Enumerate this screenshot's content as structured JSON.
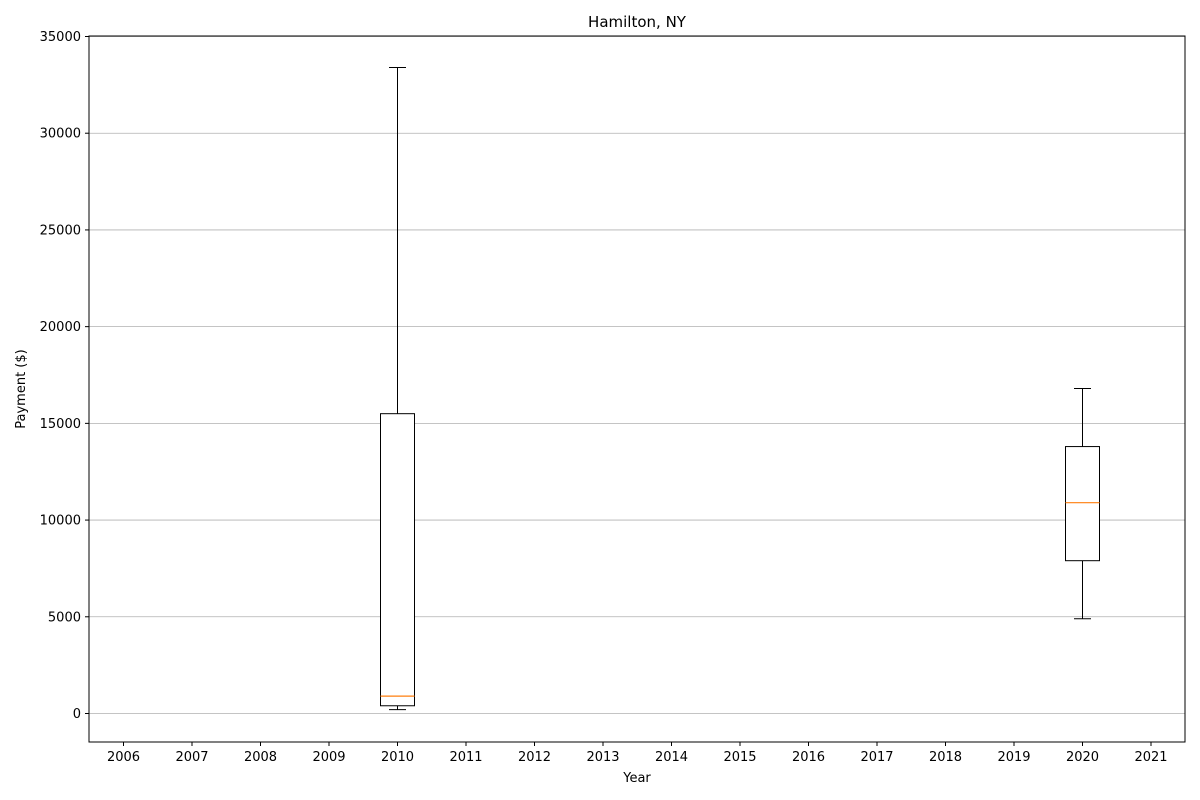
{
  "chart_data": {
    "type": "box",
    "title": "Hamilton, NY",
    "xlabel": "Year",
    "ylabel": "Payment ($)",
    "categories": [
      "2006",
      "2007",
      "2008",
      "2009",
      "2010",
      "2011",
      "2012",
      "2013",
      "2014",
      "2015",
      "2016",
      "2017",
      "2018",
      "2019",
      "2020",
      "2021"
    ],
    "ylim": [
      -1500,
      35000
    ],
    "yticks": [
      0,
      5000,
      10000,
      15000,
      20000,
      25000,
      30000,
      35000
    ],
    "grid": "horizontal",
    "boxes": [
      {
        "category": "2010",
        "whisker_low": 200,
        "q1": 400,
        "median": 900,
        "q3": 15500,
        "whisker_high": 33400
      },
      {
        "category": "2020",
        "whisker_low": 4900,
        "q1": 7900,
        "median": 10900,
        "q3": 13800,
        "whisker_high": 16800
      }
    ],
    "colors": {
      "box": "#000000",
      "median": "#ff7f0e",
      "grid": "#b0b0b0"
    }
  }
}
